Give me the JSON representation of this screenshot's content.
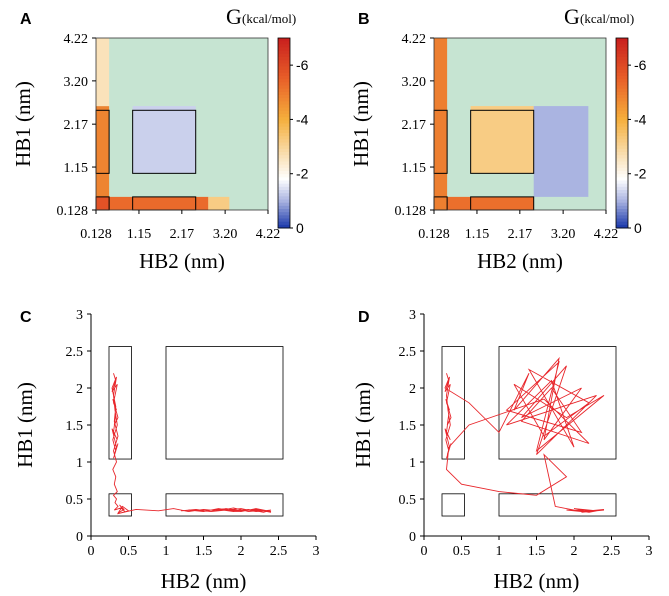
{
  "chart_data": [
    {
      "panel": "A",
      "type": "heatmap",
      "xlabel": "HB2 (nm)",
      "ylabel": "HB1 (nm)",
      "xticks": [
        "0.128",
        "1.15",
        "2.17",
        "3.20",
        "4.22"
      ],
      "yticks": [
        "0.128",
        "1.15",
        "2.17",
        "3.20",
        "4.22"
      ],
      "xlim": [
        0.128,
        4.22
      ],
      "ylim": [
        0.128,
        4.22
      ],
      "background_color": "#c6e4d2",
      "colorbar": {
        "title": "G",
        "unit": "(kcal/mol)",
        "ticks": [
          "-6",
          "-4",
          "-2",
          "0"
        ],
        "range": [
          -7,
          0
        ]
      },
      "cells_note": "grid of 20x20 bins, values in kcal/mol",
      "blocks": [
        {
          "x": [
            0.128,
            0.44
          ],
          "y": [
            0.128,
            0.44
          ],
          "G": -5.8
        },
        {
          "x": [
            0.44,
            2.8
          ],
          "y": [
            0.128,
            0.44
          ],
          "G": -5.3
        },
        {
          "x": [
            2.8,
            3.3
          ],
          "y": [
            0.128,
            0.44
          ],
          "G": -3.2
        },
        {
          "x": [
            0.128,
            0.44
          ],
          "y": [
            0.44,
            2.6
          ],
          "G": -4.8
        },
        {
          "x": [
            0.128,
            0.44
          ],
          "y": [
            2.6,
            4.22
          ],
          "G": -2.6
        },
        {
          "x": [
            1.0,
            2.5
          ],
          "y": [
            1.0,
            2.6
          ],
          "G": -1.3
        }
      ],
      "boxes": [
        {
          "x": [
            0.128,
            0.44
          ],
          "y": [
            0.128,
            0.44
          ]
        },
        {
          "x": [
            0.128,
            0.44
          ],
          "y": [
            1.0,
            2.5
          ]
        },
        {
          "x": [
            1.0,
            2.5
          ],
          "y": [
            0.128,
            0.44
          ]
        },
        {
          "x": [
            1.0,
            2.5
          ],
          "y": [
            1.0,
            2.5
          ]
        }
      ]
    },
    {
      "panel": "B",
      "type": "heatmap",
      "xlabel": "HB2 (nm)",
      "ylabel": "HB1 (nm)",
      "xticks": [
        "0.128",
        "1.15",
        "2.17",
        "3.20",
        "4.22"
      ],
      "yticks": [
        "0.128",
        "1.15",
        "2.17",
        "3.20",
        "4.22"
      ],
      "xlim": [
        0.128,
        4.22
      ],
      "ylim": [
        0.128,
        4.22
      ],
      "background_color": "#c6e4d2",
      "colorbar": {
        "title": "G",
        "unit": "(kcal/mol)",
        "ticks": [
          "-6",
          "-4",
          "-2",
          "0"
        ],
        "range": [
          -7,
          0
        ]
      },
      "blocks": [
        {
          "x": [
            0.128,
            0.44
          ],
          "y": [
            0.128,
            4.22
          ],
          "G": -4.9
        },
        {
          "x": [
            0.44,
            2.5
          ],
          "y": [
            0.128,
            0.44
          ],
          "G": -5.2
        },
        {
          "x": [
            1.0,
            2.5
          ],
          "y": [
            1.0,
            2.6
          ],
          "G": -3.2
        },
        {
          "x": [
            2.5,
            3.8
          ],
          "y": [
            0.44,
            2.6
          ],
          "G": -1.0
        }
      ],
      "boxes": [
        {
          "x": [
            0.128,
            0.44
          ],
          "y": [
            0.128,
            0.44
          ]
        },
        {
          "x": [
            0.128,
            0.44
          ],
          "y": [
            1.0,
            2.5
          ]
        },
        {
          "x": [
            1.0,
            2.5
          ],
          "y": [
            0.128,
            0.44
          ]
        },
        {
          "x": [
            1.0,
            2.5
          ],
          "y": [
            1.0,
            2.5
          ]
        }
      ]
    },
    {
      "panel": "C",
      "type": "line",
      "xlabel": "HB2 (nm)",
      "ylabel": "HB1 (nm)",
      "xlim": [
        0,
        3
      ],
      "ylim": [
        0,
        3
      ],
      "xticks": [
        "0",
        "0.5",
        "1",
        "1.5",
        "2",
        "2.5",
        "3"
      ],
      "yticks": [
        "0",
        "0.5",
        "1",
        "1.5",
        "2",
        "2.5",
        "3"
      ],
      "line_color": "#e8262b",
      "boxes": [
        {
          "x": [
            0.24,
            0.54
          ],
          "y": [
            0.27,
            0.57
          ]
        },
        {
          "x": [
            0.24,
            0.54
          ],
          "y": [
            1.04,
            2.56
          ]
        },
        {
          "x": [
            1.0,
            2.56
          ],
          "y": [
            0.27,
            0.57
          ]
        },
        {
          "x": [
            1.0,
            2.56
          ],
          "y": [
            1.04,
            2.56
          ]
        }
      ],
      "trajectory": {
        "x": [
          0.3,
          0.33,
          0.28,
          0.35,
          0.3,
          0.34,
          0.29,
          0.36,
          0.31,
          0.33,
          0.3,
          0.35,
          0.28,
          0.34,
          0.31,
          0.36,
          0.3,
          0.33,
          0.29,
          0.35,
          0.32,
          0.3,
          0.34,
          0.28,
          0.33,
          0.31,
          0.36,
          0.3,
          0.34,
          0.29,
          0.33,
          0.31,
          0.35,
          0.3,
          0.34,
          0.32,
          0.36,
          0.31,
          0.4,
          0.45,
          0.38,
          0.44,
          0.36,
          0.42,
          0.5,
          0.35,
          0.6,
          0.9,
          1.1,
          1.3,
          1.5,
          1.7,
          1.9,
          2.1,
          2.3,
          2.4,
          2.2,
          2.0,
          1.8,
          1.6,
          1.4,
          1.2,
          1.4,
          1.6,
          1.8,
          2.0,
          2.2,
          2.4,
          2.3,
          2.1,
          1.9,
          1.7,
          1.5,
          1.3,
          1.5,
          1.7,
          1.9,
          2.1,
          2.35,
          2.2,
          2.0,
          1.8,
          2.0,
          2.25,
          2.4
        ],
        "y": [
          2.2,
          2.1,
          1.95,
          2.05,
          1.8,
          1.7,
          1.85,
          1.6,
          1.5,
          1.65,
          1.4,
          1.3,
          1.45,
          1.2,
          1.1,
          1.25,
          1.05,
          1.15,
          1.3,
          1.5,
          1.7,
          1.9,
          2.15,
          2.0,
          1.75,
          1.55,
          1.35,
          1.15,
          1.0,
          0.9,
          0.8,
          0.7,
          0.6,
          0.55,
          0.5,
          0.45,
          0.4,
          0.35,
          0.38,
          0.33,
          0.42,
          0.36,
          0.31,
          0.4,
          0.34,
          0.3,
          0.36,
          0.34,
          0.37,
          0.33,
          0.36,
          0.34,
          0.38,
          0.33,
          0.35,
          0.32,
          0.36,
          0.34,
          0.37,
          0.33,
          0.35,
          0.34,
          0.36,
          0.33,
          0.35,
          0.37,
          0.33,
          0.35,
          0.32,
          0.36,
          0.34,
          0.37,
          0.33,
          0.35,
          0.34,
          0.36,
          0.33,
          0.35,
          0.34,
          0.37,
          0.33,
          0.35,
          0.34,
          0.36,
          0.33
        ]
      }
    },
    {
      "panel": "D",
      "type": "line",
      "xlabel": "HB2 (nm)",
      "ylabel": "HB1 (nm)",
      "xlim": [
        0,
        3
      ],
      "ylim": [
        0,
        3
      ],
      "xticks": [
        "0",
        "0.5",
        "1",
        "1.5",
        "2",
        "2.5",
        "3"
      ],
      "yticks": [
        "0",
        "0.5",
        "1",
        "1.5",
        "2",
        "2.5",
        "3"
      ],
      "line_color": "#e8262b",
      "boxes": [
        {
          "x": [
            0.24,
            0.54
          ],
          "y": [
            0.27,
            0.57
          ]
        },
        {
          "x": [
            0.24,
            0.54
          ],
          "y": [
            1.04,
            2.56
          ]
        },
        {
          "x": [
            1.0,
            2.56
          ],
          "y": [
            0.27,
            0.57
          ]
        },
        {
          "x": [
            1.0,
            2.56
          ],
          "y": [
            1.04,
            2.56
          ]
        }
      ],
      "trajectory": {
        "x": [
          0.3,
          0.33,
          0.28,
          0.35,
          0.3,
          0.34,
          0.29,
          0.36,
          0.31,
          0.33,
          0.3,
          0.35,
          0.28,
          0.34,
          0.31,
          0.36,
          0.3,
          0.33,
          0.29,
          0.35,
          0.32,
          0.3,
          0.34,
          0.28,
          0.6,
          1.0,
          1.4,
          1.2,
          1.8,
          1.6,
          2.1,
          1.3,
          1.9,
          1.5,
          2.3,
          1.1,
          1.7,
          2.0,
          1.4,
          2.2,
          1.6,
          1.2,
          1.9,
          2.4,
          1.5,
          1.8,
          1.1,
          2.1,
          1.7,
          1.3,
          2.2,
          1.6,
          0.6,
          0.33,
          0.3,
          0.5,
          1.0,
          1.5,
          1.9,
          1.6,
          1.75,
          2.0,
          2.2,
          2.4,
          2.1,
          1.9,
          2.3,
          2.0,
          2.2,
          2.4,
          2.1,
          2.3
        ],
        "y": [
          2.2,
          2.1,
          1.95,
          2.05,
          1.8,
          1.7,
          1.85,
          1.6,
          1.5,
          1.65,
          1.4,
          1.3,
          1.45,
          1.2,
          1.1,
          1.25,
          1.05,
          1.15,
          1.3,
          1.5,
          1.7,
          1.9,
          2.15,
          2.0,
          1.8,
          1.4,
          2.2,
          1.7,
          2.4,
          1.3,
          2.0,
          1.6,
          2.3,
          1.1,
          1.9,
          1.5,
          2.1,
          1.2,
          2.25,
          1.8,
          1.35,
          2.05,
          1.6,
          1.9,
          1.15,
          2.35,
          1.7,
          1.4,
          2.0,
          1.55,
          1.25,
          1.85,
          1.5,
          1.2,
          0.9,
          0.7,
          0.6,
          0.55,
          0.8,
          1.1,
          0.4,
          0.35,
          0.32,
          0.36,
          0.33,
          0.35,
          0.34,
          0.37,
          0.33,
          0.35,
          0.32,
          0.34
        ]
      }
    }
  ]
}
